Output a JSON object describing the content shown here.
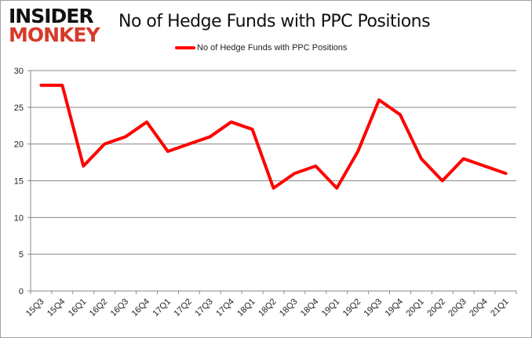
{
  "logo": {
    "line1": "INSIDER",
    "line2": "MONKEY"
  },
  "chart_data": {
    "type": "line",
    "title": "No of Hedge Funds with PPC Positions",
    "categories": [
      "15Q3",
      "15Q4",
      "16Q1",
      "16Q2",
      "16Q3",
      "16Q4",
      "17Q1",
      "17Q2",
      "17Q3",
      "17Q4",
      "18Q1",
      "18Q2",
      "18Q3",
      "18Q4",
      "19Q1",
      "19Q2",
      "19Q3",
      "19Q4",
      "20Q1",
      "20Q2",
      "20Q3",
      "20Q4",
      "21Q1"
    ],
    "series": [
      {
        "name": "No of Hedge Funds with PPC Positions",
        "color": "#ff0000",
        "values": [
          28,
          28,
          17,
          20,
          21,
          23,
          19,
          20,
          21,
          23,
          22,
          14,
          16,
          17,
          14,
          19,
          26,
          24,
          18,
          15,
          18,
          17,
          16
        ]
      }
    ],
    "ylim": [
      0,
      30
    ],
    "yticks": [
      0,
      5,
      10,
      15,
      20,
      25,
      30
    ],
    "grid": true,
    "legend": "top"
  }
}
